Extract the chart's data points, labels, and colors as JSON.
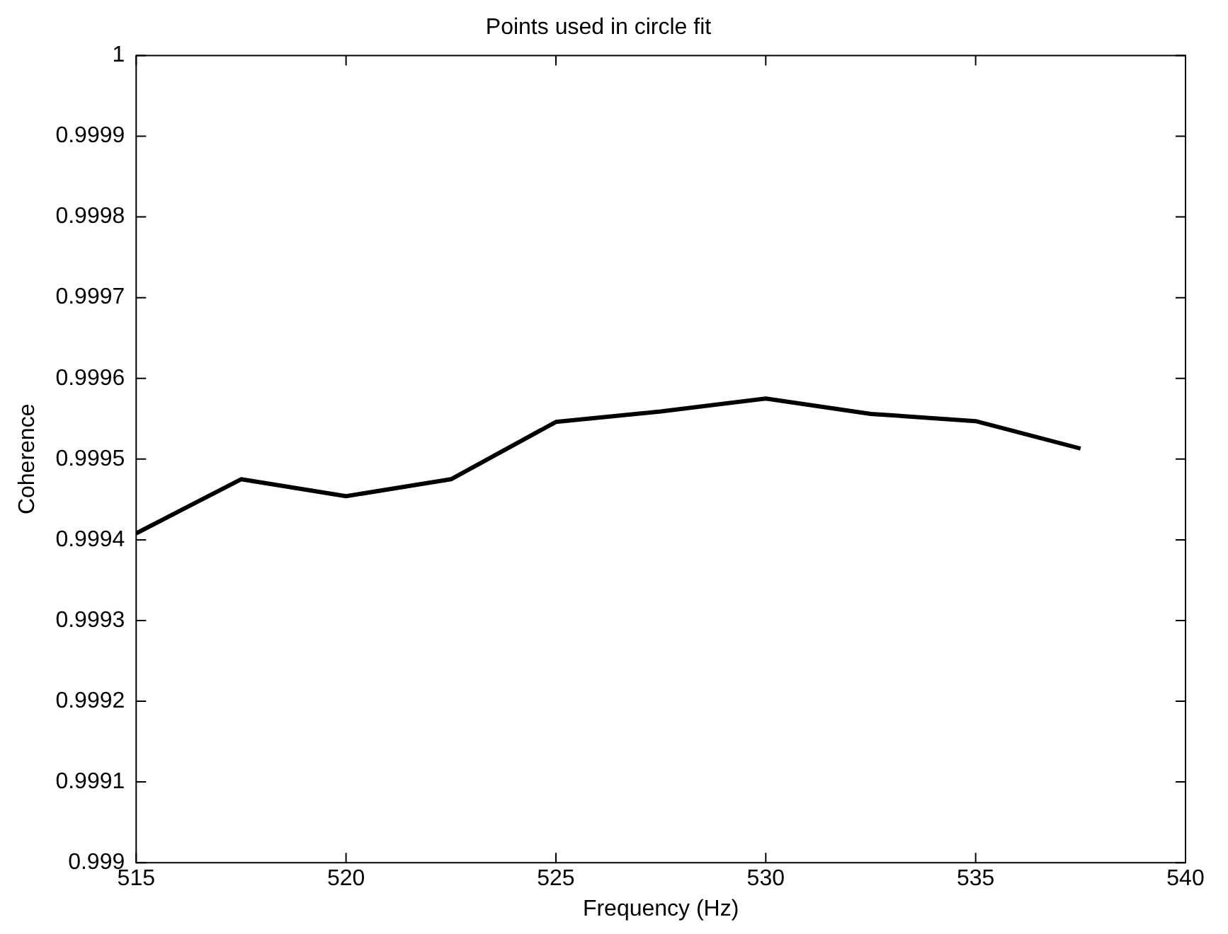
{
  "chart_data": {
    "type": "line",
    "title": "Points used in circle fit",
    "xlabel": "Frequency (Hz)",
    "ylabel": "Coherence",
    "x": [
      515,
      517.5,
      520,
      522.5,
      525,
      527.5,
      530,
      532.5,
      535,
      537.5
    ],
    "series": [
      {
        "color": "#000000",
        "values": [
          0.999408,
          0.999475,
          0.999454,
          0.999475,
          0.999546,
          0.999559,
          0.999575,
          0.999556,
          0.999547,
          0.999513
        ]
      }
    ],
    "xlim": [
      515,
      540
    ],
    "xticks": [
      515,
      520,
      525,
      530,
      535,
      540
    ],
    "ylim": [
      0.999,
      1
    ],
    "yticks": [
      0.999,
      0.9991,
      0.9992,
      0.9993,
      0.9994,
      0.9995,
      0.9996,
      0.9997,
      0.9998,
      0.9999,
      1
    ],
    "grid": false,
    "legend": false,
    "marker": "none",
    "line_style": "solid"
  }
}
